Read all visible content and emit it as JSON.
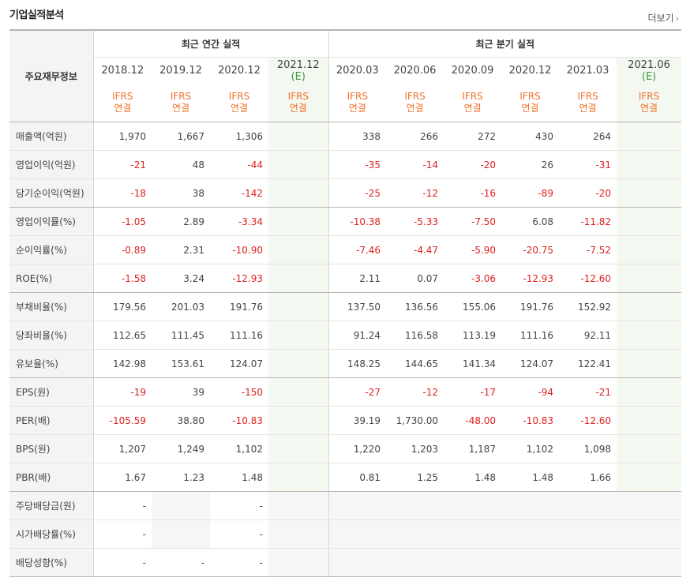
{
  "section_title": "기업실적분석",
  "more_label": "더보기",
  "more_icon": "chevron-right-icon",
  "corner_label": "주요재무정보",
  "annual_header": "최근 연간 실적",
  "quarter_header": "최근 분기 실적",
  "periods": [
    {
      "date": "2018.12",
      "est": "",
      "ifrs1": "IFRS",
      "ifrs2": "연결"
    },
    {
      "date": "2019.12",
      "est": "",
      "ifrs1": "IFRS",
      "ifrs2": "연결"
    },
    {
      "date": "2020.12",
      "est": "",
      "ifrs1": "IFRS",
      "ifrs2": "연결"
    },
    {
      "date": "2021.12",
      "est": "(E)",
      "ifrs1": "IFRS",
      "ifrs2": "연결"
    },
    {
      "date": "2020.03",
      "est": "",
      "ifrs1": "IFRS",
      "ifrs2": "연결"
    },
    {
      "date": "2020.06",
      "est": "",
      "ifrs1": "IFRS",
      "ifrs2": "연결"
    },
    {
      "date": "2020.09",
      "est": "",
      "ifrs1": "IFRS",
      "ifrs2": "연결"
    },
    {
      "date": "2020.12",
      "est": "",
      "ifrs1": "IFRS",
      "ifrs2": "연결"
    },
    {
      "date": "2021.03",
      "est": "",
      "ifrs1": "IFRS",
      "ifrs2": "연결"
    },
    {
      "date": "2021.06",
      "est": "(E)",
      "ifrs1": "IFRS",
      "ifrs2": "연결"
    }
  ],
  "rows": [
    {
      "label": "매출액(억원)",
      "values": [
        "1,970",
        "1,667",
        "1,306",
        "",
        "338",
        "266",
        "272",
        "430",
        "264",
        ""
      ]
    },
    {
      "label": "영업이익(억원)",
      "values": [
        "-21",
        "48",
        "-44",
        "",
        "-35",
        "-14",
        "-20",
        "26",
        "-31",
        ""
      ]
    },
    {
      "label": "당기순이익(억원)",
      "values": [
        "-18",
        "38",
        "-142",
        "",
        "-25",
        "-12",
        "-16",
        "-89",
        "-20",
        ""
      ]
    },
    {
      "label": "영업이익률(%)",
      "values": [
        "-1.05",
        "2.89",
        "-3.34",
        "",
        "-10.38",
        "-5.33",
        "-7.50",
        "6.08",
        "-11.82",
        ""
      ]
    },
    {
      "label": "순이익률(%)",
      "values": [
        "-0.89",
        "2.31",
        "-10.90",
        "",
        "-7.46",
        "-4.47",
        "-5.90",
        "-20.75",
        "-7.52",
        ""
      ]
    },
    {
      "label": "ROE(%)",
      "values": [
        "-1.58",
        "3.24",
        "-12.93",
        "",
        "2.11",
        "0.07",
        "-3.06",
        "-12.93",
        "-12.60",
        ""
      ]
    },
    {
      "label": "부채비율(%)",
      "values": [
        "179.56",
        "201.03",
        "191.76",
        "",
        "137.50",
        "136.56",
        "155.06",
        "191.76",
        "152.92",
        ""
      ]
    },
    {
      "label": "당좌비율(%)",
      "values": [
        "112.65",
        "111.45",
        "111.16",
        "",
        "91.24",
        "116.58",
        "113.19",
        "111.16",
        "92.11",
        ""
      ]
    },
    {
      "label": "유보율(%)",
      "values": [
        "142.98",
        "153.61",
        "124.07",
        "",
        "148.25",
        "144.65",
        "141.34",
        "124.07",
        "122.41",
        ""
      ]
    },
    {
      "label": "EPS(원)",
      "values": [
        "-19",
        "39",
        "-150",
        "",
        "-27",
        "-12",
        "-17",
        "-94",
        "-21",
        ""
      ]
    },
    {
      "label": "PER(배)",
      "values": [
        "-105.59",
        "38.80",
        "-10.83",
        "",
        "39.19",
        "1,730.00",
        "-48.00",
        "-10.83",
        "-12.60",
        ""
      ]
    },
    {
      "label": "BPS(원)",
      "values": [
        "1,207",
        "1,249",
        "1,102",
        "",
        "1,220",
        "1,203",
        "1,187",
        "1,102",
        "1,098",
        ""
      ]
    },
    {
      "label": "PBR(배)",
      "values": [
        "1.67",
        "1.23",
        "1.48",
        "",
        "0.81",
        "1.25",
        "1.48",
        "1.48",
        "1.66",
        ""
      ]
    },
    {
      "label": "주당배당금(원)",
      "values": [
        "-",
        "",
        "-",
        "",
        "",
        "",
        "",
        "",
        "",
        ""
      ]
    },
    {
      "label": "시가배당률(%)",
      "values": [
        "-",
        "",
        "-",
        "",
        "",
        "",
        "",
        "",
        "",
        ""
      ]
    },
    {
      "label": "배당성향(%)",
      "values": [
        "-",
        "-",
        "-",
        "",
        "",
        "",
        "",
        "",
        "",
        ""
      ]
    }
  ]
}
